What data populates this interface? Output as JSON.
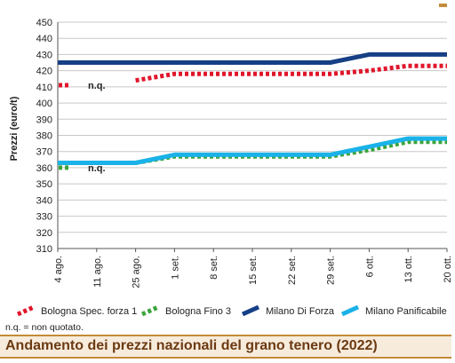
{
  "caption": "Andamento dei prezzi nazionali del grano tenero (2022)",
  "note": "n.q. = non quotato.",
  "chart_data": {
    "type": "line",
    "ylabel": "Prezzi (euro/t)",
    "ylim": [
      310,
      450
    ],
    "yticks": [
      310,
      320,
      330,
      340,
      350,
      360,
      370,
      380,
      390,
      400,
      410,
      420,
      430,
      440,
      450
    ],
    "categories": [
      "4 ago.",
      "11 ago.",
      "25 ago.",
      "1 set.",
      "8 set.",
      "15 set.",
      "22 set.",
      "29 set.",
      "6 ott.",
      "13 ott.",
      "20 ott."
    ],
    "grid": "horizontal",
    "legend_position": "bottom",
    "series": [
      {
        "name": "Bologna Spec. forza 1",
        "color": "#e0162b",
        "style": "dotted",
        "values": [
          null,
          null,
          414,
          418,
          418,
          418,
          418,
          418,
          420,
          423,
          423
        ],
        "nq_value": 411,
        "nq_label": "n.q."
      },
      {
        "name": "Bologna Fino 3",
        "color": "#3aa53a",
        "style": "dotted",
        "values": [
          null,
          null,
          363,
          367,
          367,
          367,
          367,
          367,
          371,
          376,
          376
        ],
        "nq_value": 360,
        "nq_label": "n.q."
      },
      {
        "name": "Milano Di Forza",
        "color": "#163f85",
        "style": "solid",
        "values": [
          425,
          425,
          425,
          425,
          425,
          425,
          425,
          425,
          430,
          430,
          430
        ]
      },
      {
        "name": "Milano Panificabile",
        "color": "#1ab2e8",
        "style": "solid",
        "values": [
          363,
          363,
          363,
          368,
          368,
          368,
          368,
          368,
          373,
          378,
          378
        ]
      }
    ]
  }
}
